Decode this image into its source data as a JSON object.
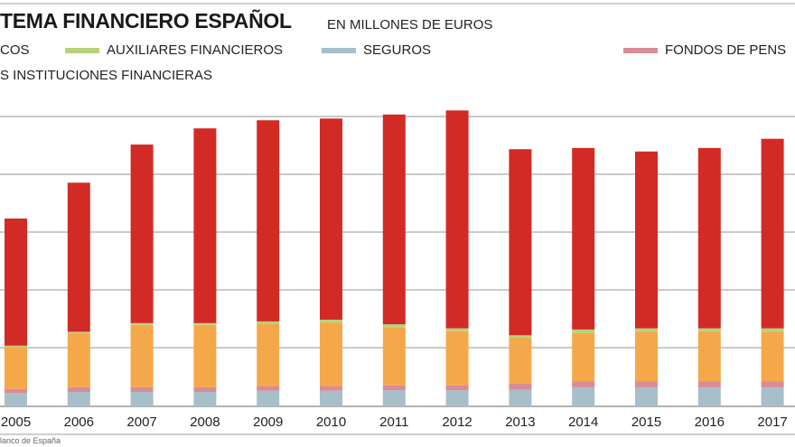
{
  "header": {
    "title": "TEMA FINANCIERO ESPAÑOL",
    "subtitle": "EN MILLONES DE EUROS"
  },
  "legend": [
    {
      "label": "COS",
      "color": "#d22b26"
    },
    {
      "label": "AUXILIARES FINANCIEROS",
      "color": "#b6d37a"
    },
    {
      "label": "SEGUROS",
      "color": "#a6bfc8"
    },
    {
      "label": "FONDOS DE PENS",
      "color": "#d98b98"
    },
    {
      "label": "S INSTITUCIONES FINANCIERAS",
      "color": "#f5a84a"
    }
  ],
  "source": "lanco de España",
  "chart_data": {
    "type": "bar",
    "stacked": true,
    "title": "TEMA FINANCIERO ESPAÑOL",
    "subtitle": "EN MILLONES DE EUROS",
    "xlabel": "",
    "ylabel": "",
    "y_units": "gridline divisions (no tick labels shown)",
    "ylim": [
      0,
      5
    ],
    "grid": true,
    "legend_position": "top",
    "categories": [
      "2005",
      "2006",
      "2007",
      "2008",
      "2009",
      "2010",
      "2011",
      "2012",
      "2013",
      "2014",
      "2015",
      "2016",
      "2017"
    ],
    "series": [
      {
        "name": "SEGUROS",
        "color": "#a6bfc8",
        "values": [
          0.23,
          0.25,
          0.25,
          0.25,
          0.27,
          0.27,
          0.28,
          0.28,
          0.29,
          0.33,
          0.33,
          0.33,
          0.33
        ]
      },
      {
        "name": "FONDOS DE PENS",
        "color": "#d98b98",
        "values": [
          0.07,
          0.08,
          0.08,
          0.08,
          0.08,
          0.08,
          0.08,
          0.08,
          0.1,
          0.1,
          0.1,
          0.1,
          0.1
        ]
      },
      {
        "name": "S INSTITUCIONES FINANCIERAS",
        "color": "#f5a84a",
        "values": [
          0.73,
          0.94,
          1.08,
          1.08,
          1.08,
          1.1,
          1.01,
          0.94,
          0.79,
          0.84,
          0.86,
          0.86,
          0.86
        ]
      },
      {
        "name": "AUXILIARES FINANCIEROS",
        "color": "#b6d37a",
        "values": [
          0.02,
          0.02,
          0.03,
          0.03,
          0.04,
          0.05,
          0.05,
          0.05,
          0.05,
          0.06,
          0.06,
          0.06,
          0.06
        ]
      },
      {
        "name": "COS",
        "color": "#d22b26",
        "values": [
          2.2,
          2.58,
          3.09,
          3.37,
          3.48,
          3.48,
          3.63,
          3.77,
          3.22,
          3.14,
          3.06,
          3.12,
          3.28
        ]
      }
    ]
  }
}
